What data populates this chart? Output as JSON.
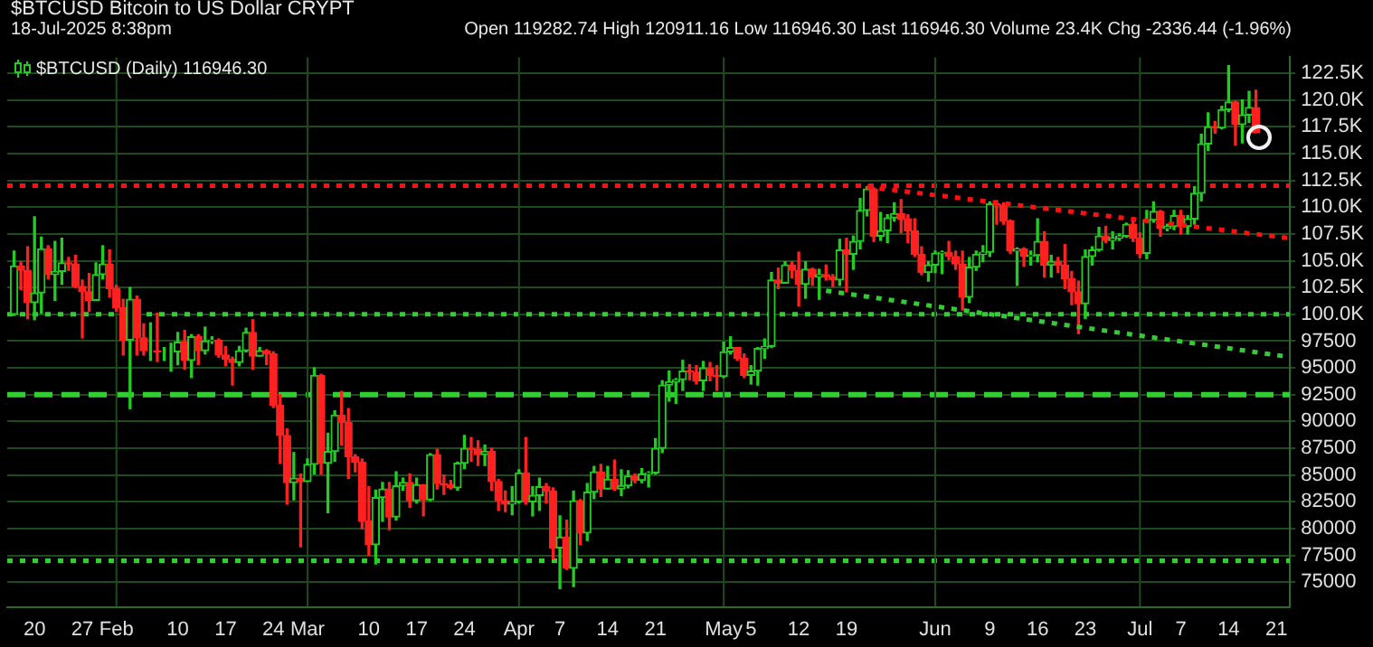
{
  "chart_data": {
    "type": "candlestick",
    "title": "$BTCUSD Bitcoin to US Dollar CRYPT",
    "subtitle": "18-Jul-2025 8:38pm",
    "annotations": [
      "Open 119282.74 High 120911.16 Low 116946.30 Last 116946.30 Volume 23.4K Chg -2336.44 (-1.96%)"
    ],
    "legend": "top left",
    "grid": "y",
    "xlim": [
      "2025-01-16",
      "2025-07-23"
    ],
    "xticks": [
      {
        "value": "2025-01-20",
        "label": "20"
      },
      {
        "value": "2025-01-27",
        "label": "27"
      },
      {
        "value": "2025-02-01",
        "label": "Feb"
      },
      {
        "value": "2025-02-10",
        "label": "10"
      },
      {
        "value": "2025-02-17",
        "label": "17"
      },
      {
        "value": "2025-02-24",
        "label": "24"
      },
      {
        "value": "2025-03-01",
        "label": "Mar"
      },
      {
        "value": "2025-03-10",
        "label": "10"
      },
      {
        "value": "2025-03-17",
        "label": "17"
      },
      {
        "value": "2025-03-24",
        "label": "24"
      },
      {
        "value": "2025-04-01",
        "label": "Apr"
      },
      {
        "value": "2025-04-07",
        "label": "7"
      },
      {
        "value": "2025-04-14",
        "label": "14"
      },
      {
        "value": "2025-04-21",
        "label": "21"
      },
      {
        "value": "2025-05-01",
        "label": "May"
      },
      {
        "value": "2025-05-05",
        "label": "5"
      },
      {
        "value": "2025-05-12",
        "label": "12"
      },
      {
        "value": "2025-05-19",
        "label": "19"
      },
      {
        "value": "2025-06-01",
        "label": "Jun"
      },
      {
        "value": "2025-06-09",
        "label": "9"
      },
      {
        "value": "2025-06-16",
        "label": "16"
      },
      {
        "value": "2025-06-23",
        "label": "23"
      },
      {
        "value": "2025-07-01",
        "label": "Jul"
      },
      {
        "value": "2025-07-07",
        "label": "7"
      },
      {
        "value": "2025-07-14",
        "label": "14"
      },
      {
        "value": "2025-07-21",
        "label": "21"
      }
    ],
    "ylim": [
      72700,
      124000
    ],
    "yticks": [
      75000,
      77500,
      80000,
      82500,
      85000,
      87500,
      90000,
      92500,
      95000,
      97500,
      {
        "value": 100000,
        "label": "100.0K"
      },
      {
        "value": 102500,
        "label": "102.5K"
      },
      {
        "value": 105000,
        "label": "105.0K"
      },
      {
        "value": 107500,
        "label": "107.5K"
      },
      {
        "value": 110000,
        "label": "110.0K"
      },
      {
        "value": 112500,
        "label": "112.5K"
      },
      {
        "value": 115000,
        "label": "115.0K"
      },
      {
        "value": 117500,
        "label": "117.5K"
      },
      {
        "value": 120000,
        "label": "120.0K"
      },
      {
        "value": 122500,
        "label": "122.5K"
      }
    ],
    "ref_lines": [
      {
        "axis": "y",
        "value": 112000,
        "color": "#ff1010",
        "line_style": "dotted"
      },
      {
        "axis": "y",
        "value": 100000,
        "color": "#33cc33",
        "line_style": "dotted"
      },
      {
        "axis": "y",
        "value": 92500,
        "color": "#33cc33",
        "line_style": "dashed"
      },
      {
        "axis": "y",
        "value": 77000,
        "color": "#33cc33",
        "line_style": "dotted"
      },
      {
        "axis": "x",
        "value": "2025-02-01",
        "color": "#1e4a1e",
        "line_style": "solid"
      },
      {
        "axis": "x",
        "value": "2025-03-01",
        "color": "#1e4a1e",
        "line_style": "solid"
      },
      {
        "axis": "x",
        "value": "2025-04-01",
        "color": "#1e4a1e",
        "line_style": "solid"
      },
      {
        "axis": "x",
        "value": "2025-05-01",
        "color": "#1e4a1e",
        "line_style": "solid"
      },
      {
        "axis": "x",
        "value": "2025-06-01",
        "color": "#1e4a1e",
        "line_style": "solid"
      },
      {
        "axis": "x",
        "value": "2025-07-01",
        "color": "#1e4a1e",
        "line_style": "solid"
      }
    ],
    "series": [
      {
        "name": "$BTCUSD (Daily) 116946.30",
        "x": [
          "2025-01-17",
          "2025-01-18",
          "2025-01-19",
          "2025-01-20",
          "2025-01-21",
          "2025-01-22",
          "2025-01-23",
          "2025-01-24",
          "2025-01-25",
          "2025-01-26",
          "2025-01-27",
          "2025-01-28",
          "2025-01-29",
          "2025-01-30",
          "2025-01-31",
          "2025-02-01",
          "2025-02-02",
          "2025-02-03",
          "2025-02-04",
          "2025-02-05",
          "2025-02-06",
          "2025-02-07",
          "2025-02-08",
          "2025-02-09",
          "2025-02-10",
          "2025-02-11",
          "2025-02-12",
          "2025-02-13",
          "2025-02-14",
          "2025-02-15",
          "2025-02-16",
          "2025-02-17",
          "2025-02-18",
          "2025-02-19",
          "2025-02-20",
          "2025-02-21",
          "2025-02-22",
          "2025-02-23",
          "2025-02-24",
          "2025-02-25",
          "2025-02-26",
          "2025-02-27",
          "2025-02-28",
          "2025-03-01",
          "2025-03-02",
          "2025-03-03",
          "2025-03-04",
          "2025-03-05",
          "2025-03-06",
          "2025-03-07",
          "2025-03-08",
          "2025-03-09",
          "2025-03-10",
          "2025-03-11",
          "2025-03-12",
          "2025-03-13",
          "2025-03-14",
          "2025-03-15",
          "2025-03-16",
          "2025-03-17",
          "2025-03-18",
          "2025-03-19",
          "2025-03-20",
          "2025-03-21",
          "2025-03-22",
          "2025-03-23",
          "2025-03-24",
          "2025-03-25",
          "2025-03-26",
          "2025-03-27",
          "2025-03-28",
          "2025-03-29",
          "2025-03-30",
          "2025-03-31",
          "2025-04-01",
          "2025-04-02",
          "2025-04-03",
          "2025-04-04",
          "2025-04-05",
          "2025-04-06",
          "2025-04-07",
          "2025-04-08",
          "2025-04-09",
          "2025-04-10",
          "2025-04-11",
          "2025-04-12",
          "2025-04-13",
          "2025-04-14",
          "2025-04-15",
          "2025-04-16",
          "2025-04-17",
          "2025-04-18",
          "2025-04-19",
          "2025-04-20",
          "2025-04-21",
          "2025-04-22",
          "2025-04-23",
          "2025-04-24",
          "2025-04-25",
          "2025-04-26",
          "2025-04-27",
          "2025-04-28",
          "2025-04-29",
          "2025-04-30",
          "2025-05-01",
          "2025-05-02",
          "2025-05-03",
          "2025-05-04",
          "2025-05-05",
          "2025-05-06",
          "2025-05-07",
          "2025-05-08",
          "2025-05-09",
          "2025-05-10",
          "2025-05-11",
          "2025-05-12",
          "2025-05-13",
          "2025-05-14",
          "2025-05-15",
          "2025-05-16",
          "2025-05-17",
          "2025-05-18",
          "2025-05-19",
          "2025-05-20",
          "2025-05-21",
          "2025-05-22",
          "2025-05-23",
          "2025-05-24",
          "2025-05-25",
          "2025-05-26",
          "2025-05-27",
          "2025-05-28",
          "2025-05-29",
          "2025-05-30",
          "2025-05-31",
          "2025-06-01",
          "2025-06-02",
          "2025-06-03",
          "2025-06-04",
          "2025-06-05",
          "2025-06-06",
          "2025-06-07",
          "2025-06-08",
          "2025-06-09",
          "2025-06-10",
          "2025-06-11",
          "2025-06-12",
          "2025-06-13",
          "2025-06-14",
          "2025-06-15",
          "2025-06-16",
          "2025-06-17",
          "2025-06-18",
          "2025-06-19",
          "2025-06-20",
          "2025-06-21",
          "2025-06-22",
          "2025-06-23",
          "2025-06-24",
          "2025-06-25",
          "2025-06-26",
          "2025-06-27",
          "2025-06-28",
          "2025-06-29",
          "2025-06-30",
          "2025-07-01",
          "2025-07-02",
          "2025-07-03",
          "2025-07-04",
          "2025-07-05",
          "2025-07-06",
          "2025-07-07",
          "2025-07-08",
          "2025-07-09",
          "2025-07-10",
          "2025-07-11",
          "2025-07-12",
          "2025-07-13",
          "2025-07-14",
          "2025-07-15",
          "2025-07-16",
          "2025-07-17",
          "2025-07-18"
        ],
        "ohlc": [
          [
            100000,
            105900,
            99900,
            104500
          ],
          [
            104500,
            104900,
            102300,
            104100
          ],
          [
            104100,
            106300,
            99600,
            101100
          ],
          [
            101100,
            109100,
            99500,
            102000
          ],
          [
            102000,
            107200,
            100100,
            106100
          ],
          [
            106100,
            106400,
            103300,
            103700
          ],
          [
            103700,
            106800,
            101300,
            104000
          ],
          [
            104000,
            107100,
            102800,
            104800
          ],
          [
            104800,
            105300,
            104100,
            104700
          ],
          [
            104700,
            105500,
            102500,
            102600
          ],
          [
            102600,
            103200,
            97800,
            102100
          ],
          [
            102100,
            103800,
            100300,
            101300
          ],
          [
            101300,
            104800,
            101300,
            103700
          ],
          [
            103700,
            106400,
            103300,
            104700
          ],
          [
            104700,
            106000,
            101600,
            102400
          ],
          [
            102400,
            102700,
            100300,
            100600
          ],
          [
            100600,
            101400,
            96200,
            97600
          ],
          [
            97600,
            102500,
            91200,
            101400
          ],
          [
            101400,
            101700,
            96200,
            97800
          ],
          [
            97800,
            99100,
            96200,
            96600
          ],
          [
            96600,
            99200,
            95700,
            96600
          ],
          [
            96600,
            100100,
            95600,
            96500
          ],
          [
            96500,
            96900,
            95700,
            96500
          ],
          [
            96500,
            97300,
            94700,
            96500
          ],
          [
            96500,
            98300,
            95300,
            97400
          ],
          [
            97400,
            98500,
            94900,
            95700
          ],
          [
            95700,
            98100,
            94100,
            97900
          ],
          [
            97900,
            98100,
            95300,
            96600
          ],
          [
            96600,
            98800,
            96300,
            97500
          ],
          [
            97500,
            97900,
            97300,
            97600
          ],
          [
            97600,
            97700,
            96000,
            96200
          ],
          [
            96200,
            97000,
            95200,
            95800
          ],
          [
            95800,
            96000,
            93400,
            95500
          ],
          [
            95500,
            97000,
            95200,
            96600
          ],
          [
            96600,
            98700,
            96500,
            98300
          ],
          [
            98300,
            99500,
            94900,
            96100
          ],
          [
            96100,
            96900,
            96100,
            96600
          ],
          [
            96600,
            96700,
            95300,
            96300
          ],
          [
            96300,
            96500,
            91300,
            91500
          ],
          [
            91500,
            92500,
            86100,
            88700
          ],
          [
            88700,
            89300,
            82300,
            84300
          ],
          [
            84300,
            87100,
            82700,
            84700
          ],
          [
            84700,
            85100,
            78300,
            84400
          ],
          [
            84400,
            86500,
            84400,
            86000
          ],
          [
            86000,
            95000,
            85100,
            94300
          ],
          [
            94300,
            94400,
            85100,
            86100
          ],
          [
            86100,
            88900,
            81500,
            87200
          ],
          [
            87200,
            91000,
            86300,
            90600
          ],
          [
            90600,
            92800,
            87800,
            89900
          ],
          [
            89900,
            91200,
            84700,
            86700
          ],
          [
            86700,
            86900,
            85300,
            86200
          ],
          [
            86200,
            86500,
            80000,
            80700
          ],
          [
            80700,
            83900,
            77500,
            78500
          ],
          [
            78500,
            83600,
            76700,
            82900
          ],
          [
            82900,
            84300,
            80700,
            83700
          ],
          [
            83700,
            84300,
            79900,
            81100
          ],
          [
            81100,
            85300,
            80800,
            84000
          ],
          [
            84000,
            84700,
            83600,
            84300
          ],
          [
            84300,
            85100,
            82000,
            82600
          ],
          [
            82600,
            84700,
            82400,
            84100
          ],
          [
            84100,
            84100,
            81200,
            82700
          ],
          [
            82700,
            87000,
            82600,
            86900
          ],
          [
            86900,
            87400,
            83700,
            84200
          ],
          [
            84200,
            85000,
            83200,
            84100
          ],
          [
            84100,
            84500,
            83700,
            83800
          ],
          [
            83800,
            86200,
            83600,
            86100
          ],
          [
            86100,
            88700,
            85600,
            87500
          ],
          [
            87500,
            88500,
            86300,
            87400
          ],
          [
            87400,
            88200,
            85900,
            86900
          ],
          [
            86900,
            87800,
            85900,
            87200
          ],
          [
            87200,
            87500,
            83600,
            84400
          ],
          [
            84400,
            84600,
            81700,
            82600
          ],
          [
            82600,
            83500,
            81600,
            82300
          ],
          [
            82300,
            83900,
            81300,
            82500
          ],
          [
            82500,
            85500,
            82400,
            85200
          ],
          [
            85200,
            88500,
            82300,
            82500
          ],
          [
            82500,
            83900,
            81200,
            83100
          ],
          [
            83100,
            84700,
            81700,
            83900
          ],
          [
            83900,
            84200,
            82400,
            83500
          ],
          [
            83500,
            83800,
            77200,
            78200
          ],
          [
            78200,
            81200,
            74400,
            79200
          ],
          [
            79200,
            80800,
            76200,
            76300
          ],
          [
            76300,
            83500,
            74600,
            82600
          ],
          [
            82600,
            82700,
            78500,
            79600
          ],
          [
            79600,
            84200,
            78900,
            83400
          ],
          [
            83400,
            85800,
            82800,
            85300
          ],
          [
            85300,
            86000,
            83000,
            83700
          ],
          [
            83700,
            85800,
            83700,
            84600
          ],
          [
            84600,
            86400,
            83600,
            83700
          ],
          [
            83700,
            85500,
            83100,
            84000
          ],
          [
            84000,
            85400,
            83800,
            84900
          ],
          [
            84900,
            85100,
            84300,
            84500
          ],
          [
            84500,
            85600,
            84300,
            85100
          ],
          [
            85100,
            85300,
            83900,
            85200
          ],
          [
            85200,
            88400,
            85100,
            87500
          ],
          [
            87500,
            93800,
            87100,
            93400
          ],
          [
            93400,
            94700,
            91900,
            93700
          ],
          [
            93700,
            94000,
            91700,
            93900
          ],
          [
            93900,
            95700,
            92900,
            94700
          ],
          [
            94700,
            95300,
            93900,
            94600
          ],
          [
            94600,
            95200,
            93500,
            93800
          ],
          [
            93800,
            95600,
            92900,
            95000
          ],
          [
            95000,
            95500,
            93800,
            94300
          ],
          [
            94300,
            95200,
            92900,
            94200
          ],
          [
            94200,
            97400,
            94100,
            96500
          ],
          [
            96500,
            97900,
            96300,
            96900
          ],
          [
            96900,
            96900,
            95700,
            95900
          ],
          [
            95900,
            96300,
            94100,
            94300
          ],
          [
            94300,
            95200,
            93500,
            94700
          ],
          [
            94700,
            96900,
            93400,
            96800
          ],
          [
            96800,
            97700,
            95900,
            97000
          ],
          [
            97000,
            103900,
            96900,
            103200
          ],
          [
            103200,
            104300,
            102400,
            102900
          ],
          [
            102900,
            104900,
            102900,
            104600
          ],
          [
            104600,
            104900,
            103400,
            104100
          ],
          [
            104100,
            105800,
            100800,
            102800
          ],
          [
            102800,
            104900,
            101500,
            104200
          ],
          [
            104200,
            104300,
            102700,
            103500
          ],
          [
            103500,
            104200,
            101400,
            103700
          ],
          [
            103700,
            104600,
            103200,
            103500
          ],
          [
            103500,
            103700,
            102600,
            103200
          ],
          [
            103200,
            107000,
            102700,
            106000
          ],
          [
            106000,
            107100,
            102100,
            105600
          ],
          [
            105600,
            107300,
            104200,
            106800
          ],
          [
            106800,
            110800,
            106100,
            109700
          ],
          [
            109700,
            111900,
            109200,
            111700
          ],
          [
            111700,
            111800,
            106800,
            107300
          ],
          [
            107300,
            109500,
            106900,
            107800
          ],
          [
            107800,
            109300,
            106700,
            109000
          ],
          [
            109000,
            110400,
            108700,
            109400
          ],
          [
            109400,
            110700,
            107600,
            108900
          ],
          [
            108900,
            109300,
            106700,
            107800
          ],
          [
            107800,
            108900,
            105400,
            105600
          ],
          [
            105600,
            106300,
            103700,
            103900
          ],
          [
            103900,
            104900,
            103100,
            104600
          ],
          [
            104600,
            105900,
            103900,
            105700
          ],
          [
            105700,
            105900,
            103800,
            105800
          ],
          [
            105800,
            106800,
            105100,
            105400
          ],
          [
            105400,
            105900,
            104200,
            104700
          ],
          [
            104700,
            105900,
            100400,
            101600
          ],
          [
            101600,
            105300,
            101100,
            104400
          ],
          [
            104400,
            105900,
            104100,
            105600
          ],
          [
            105600,
            106400,
            104900,
            105800
          ],
          [
            105800,
            110500,
            105400,
            110300
          ],
          [
            110300,
            110600,
            108400,
            110200
          ],
          [
            110200,
            110400,
            108400,
            108700
          ],
          [
            108700,
            108800,
            105700,
            105900
          ],
          [
            105900,
            106200,
            102700,
            106100
          ],
          [
            106100,
            106200,
            104500,
            105400
          ],
          [
            105400,
            105900,
            104600,
            105500
          ],
          [
            105500,
            108900,
            104900,
            106800
          ],
          [
            106800,
            107700,
            103500,
            104600
          ],
          [
            104600,
            105500,
            103500,
            104900
          ],
          [
            104900,
            105300,
            103900,
            104600
          ],
          [
            104600,
            106500,
            102400,
            103300
          ],
          [
            103300,
            104000,
            100900,
            102100
          ],
          [
            102100,
            103100,
            98200,
            101000
          ],
          [
            101000,
            106000,
            99600,
            105400
          ],
          [
            105400,
            106300,
            104600,
            106000
          ],
          [
            106000,
            108100,
            105900,
            107300
          ],
          [
            107300,
            108200,
            106700,
            106900
          ],
          [
            106900,
            107700,
            106100,
            107100
          ],
          [
            107100,
            107500,
            106900,
            107300
          ],
          [
            107300,
            108500,
            107200,
            108400
          ],
          [
            108400,
            108800,
            106800,
            107100
          ],
          [
            107100,
            107600,
            105300,
            105700
          ],
          [
            105700,
            109700,
            105200,
            108800
          ],
          [
            108800,
            110500,
            108600,
            109600
          ],
          [
            109600,
            109700,
            107300,
            108000
          ],
          [
            108000,
            108400,
            107800,
            108200
          ],
          [
            108200,
            109700,
            107900,
            109200
          ],
          [
            109200,
            109700,
            107500,
            108200
          ],
          [
            108200,
            109200,
            107500,
            108900
          ],
          [
            108900,
            111900,
            108400,
            111300
          ],
          [
            111300,
            116800,
            110600,
            115900
          ],
          [
            115900,
            118800,
            115300,
            117500
          ],
          [
            117500,
            118000,
            116900,
            117400
          ],
          [
            117400,
            119400,
            117300,
            119100
          ],
          [
            119100,
            123200,
            118900,
            119800
          ],
          [
            119800,
            119900,
            115800,
            117700
          ],
          [
            117700,
            120000,
            116000,
            118600
          ],
          [
            118600,
            120800,
            117900,
            119300
          ],
          [
            119282.74,
            120911.16,
            116946.3,
            116946.3
          ]
        ]
      },
      {
        "type": "line",
        "color": "#ff1010",
        "line_style": "dotted",
        "x": [
          "2025-05-22",
          "2025-07-23"
        ],
        "values": [
          111900,
          107100
        ]
      },
      {
        "type": "line",
        "color": "#33cc33",
        "line_style": "dotted",
        "x": [
          "2025-05-16",
          "2025-07-22"
        ],
        "values": [
          102200,
          96100
        ]
      }
    ]
  }
}
